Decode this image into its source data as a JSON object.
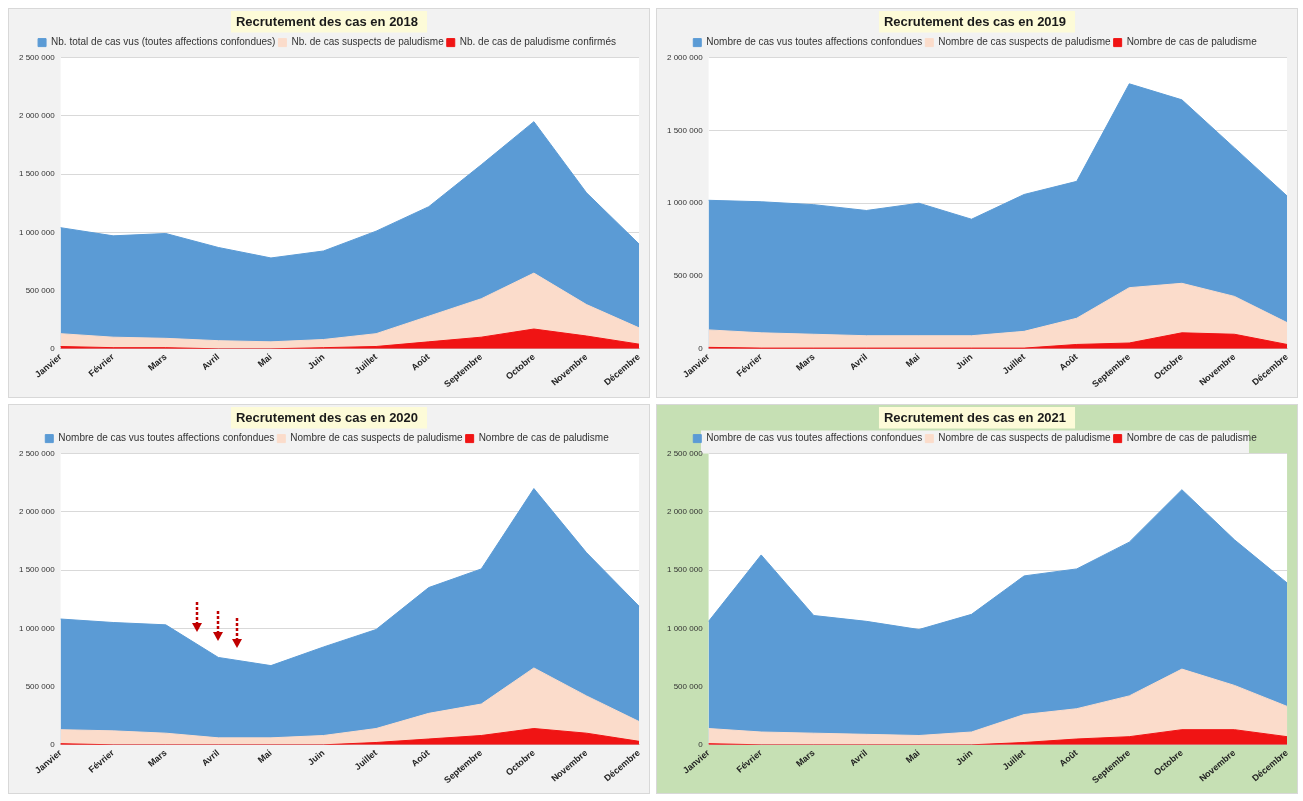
{
  "chart_data": [
    {
      "type": "area",
      "title": "Recrutement des cas en 2018",
      "categories": [
        "Janvier",
        "Février",
        "Mars",
        "Avril",
        "Mai",
        "Juin",
        "Juillet",
        "Août",
        "Septembre",
        "Octobre",
        "Novembre",
        "Décembre"
      ],
      "series": [
        {
          "name": "Nb. total de cas vus (toutes affections confondues)",
          "color": "#5b9bd5",
          "values": [
            1040000,
            970000,
            990000,
            870000,
            780000,
            840000,
            1010000,
            1220000,
            1580000,
            1950000,
            1340000,
            900000
          ]
        },
        {
          "name": "Nb. de cas suspects de paludisme",
          "color": "#fbdccb",
          "values": [
            130000,
            100000,
            90000,
            70000,
            60000,
            80000,
            130000,
            280000,
            430000,
            650000,
            380000,
            180000
          ]
        },
        {
          "name": "Nb. de cas de paludisme confirmés",
          "color": "#f01414",
          "values": [
            20000,
            10000,
            10000,
            0,
            0,
            10000,
            20000,
            60000,
            100000,
            170000,
            110000,
            40000
          ]
        }
      ],
      "ylim": [
        0,
        2500000
      ],
      "yticks": [
        {
          "value": 0,
          "label": "0"
        },
        {
          "value": 500000,
          "label": "500 000"
        },
        {
          "value": 1000000,
          "label": "1 000 000"
        },
        {
          "value": 1500000,
          "label": "1 500 000"
        },
        {
          "value": 2000000,
          "label": "2 000 000"
        },
        {
          "value": 2500000,
          "label": "2 500 000"
        }
      ],
      "grid": "y",
      "legend": "top"
    },
    {
      "type": "area",
      "title": "Recrutement des cas en 2019",
      "categories": [
        "Janvier",
        "Février",
        "Mars",
        "Avril",
        "Mai",
        "Juin",
        "Juillet",
        "Août",
        "Septembre",
        "Octobre",
        "Novembre",
        "Décembre"
      ],
      "series": [
        {
          "name": "Nombre de cas vus toutes affections confondues",
          "color": "#5b9bd5",
          "values": [
            1020000,
            1010000,
            990000,
            950000,
            1000000,
            890000,
            1060000,
            1150000,
            1820000,
            1710000,
            1380000,
            1050000
          ]
        },
        {
          "name": "Nombre de cas suspects de paludisme",
          "color": "#fbdccb",
          "values": [
            130000,
            110000,
            100000,
            90000,
            90000,
            90000,
            120000,
            210000,
            420000,
            450000,
            360000,
            180000
          ]
        },
        {
          "name": "Nombre de cas de paludisme",
          "color": "#f01414",
          "values": [
            10000,
            5000,
            5000,
            5000,
            5000,
            5000,
            5000,
            30000,
            40000,
            110000,
            100000,
            30000
          ]
        }
      ],
      "ylim": [
        0,
        2000000
      ],
      "yticks": [
        {
          "value": 0,
          "label": "0"
        },
        {
          "value": 500000,
          "label": "500 000"
        },
        {
          "value": 1000000,
          "label": "1 000 000"
        },
        {
          "value": 1500000,
          "label": "1 500 000"
        },
        {
          "value": 2000000,
          "label": "2 000 000"
        }
      ],
      "grid": "y",
      "legend": "top"
    },
    {
      "type": "area",
      "title": "Recrutement des cas en 2020",
      "categories": [
        "Janvier",
        "Février",
        "Mars",
        "Avril",
        "Mai",
        "Juin",
        "Juillet",
        "Août",
        "Septembre",
        "Octobre",
        "Novembre",
        "Décembre"
      ],
      "series": [
        {
          "name": "Nombre de cas vus toutes affections confondues",
          "color": "#5b9bd5",
          "values": [
            1080000,
            1050000,
            1030000,
            750000,
            680000,
            840000,
            990000,
            1350000,
            1510000,
            2200000,
            1650000,
            1190000
          ]
        },
        {
          "name": "Nombre de cas suspects de paludisme",
          "color": "#fbdccb",
          "values": [
            130000,
            120000,
            100000,
            60000,
            60000,
            80000,
            140000,
            270000,
            350000,
            660000,
            420000,
            200000
          ]
        },
        {
          "name": "Nombre de cas de paludisme",
          "color": "#f01414",
          "values": [
            10000,
            0,
            0,
            0,
            0,
            0,
            20000,
            50000,
            80000,
            140000,
            100000,
            30000
          ]
        }
      ],
      "ylim": [
        0,
        2500000
      ],
      "yticks": [
        {
          "value": 0,
          "label": "0"
        },
        {
          "value": 500000,
          "label": "500 000"
        },
        {
          "value": 1000000,
          "label": "1 000 000"
        },
        {
          "value": 1500000,
          "label": "1 500 000"
        },
        {
          "value": 2000000,
          "label": "2 000 000"
        },
        {
          "value": 2500000,
          "label": "2 500 000"
        }
      ],
      "grid": "y",
      "legend": "top"
    },
    {
      "type": "area",
      "title": "Recrutement des cas en 2021",
      "categories": [
        "Janvier",
        "Février",
        "Mars",
        "Avril",
        "Mai",
        "Juin",
        "Juillet",
        "Août",
        "Septembre",
        "Octobre",
        "Novembre",
        "Décembre"
      ],
      "series": [
        {
          "name": "Nombre de cas vus toutes affections confondues",
          "color": "#5b9bd5",
          "values": [
            1060000,
            1630000,
            1110000,
            1060000,
            990000,
            1120000,
            1450000,
            1510000,
            1740000,
            2190000,
            1760000,
            1390000
          ]
        },
        {
          "name": "Nombre de cas suspects de paludisme",
          "color": "#fbdccb",
          "values": [
            140000,
            110000,
            100000,
            90000,
            80000,
            110000,
            260000,
            310000,
            420000,
            650000,
            510000,
            330000
          ]
        },
        {
          "name": "Nombre de cas de paludisme",
          "color": "#f01414",
          "values": [
            10000,
            0,
            0,
            0,
            0,
            0,
            20000,
            50000,
            70000,
            130000,
            130000,
            70000
          ]
        }
      ],
      "ylim": [
        0,
        2500000
      ],
      "yticks": [
        {
          "value": 0,
          "label": "0"
        },
        {
          "value": 500000,
          "label": "500 000"
        },
        {
          "value": 1000000,
          "label": "1 000 000"
        },
        {
          "value": 1500000,
          "label": "1 500 000"
        },
        {
          "value": 2000000,
          "label": "2 000 000"
        },
        {
          "value": 2500000,
          "label": "2 500 000"
        }
      ],
      "grid": "y",
      "legend": "top"
    }
  ]
}
